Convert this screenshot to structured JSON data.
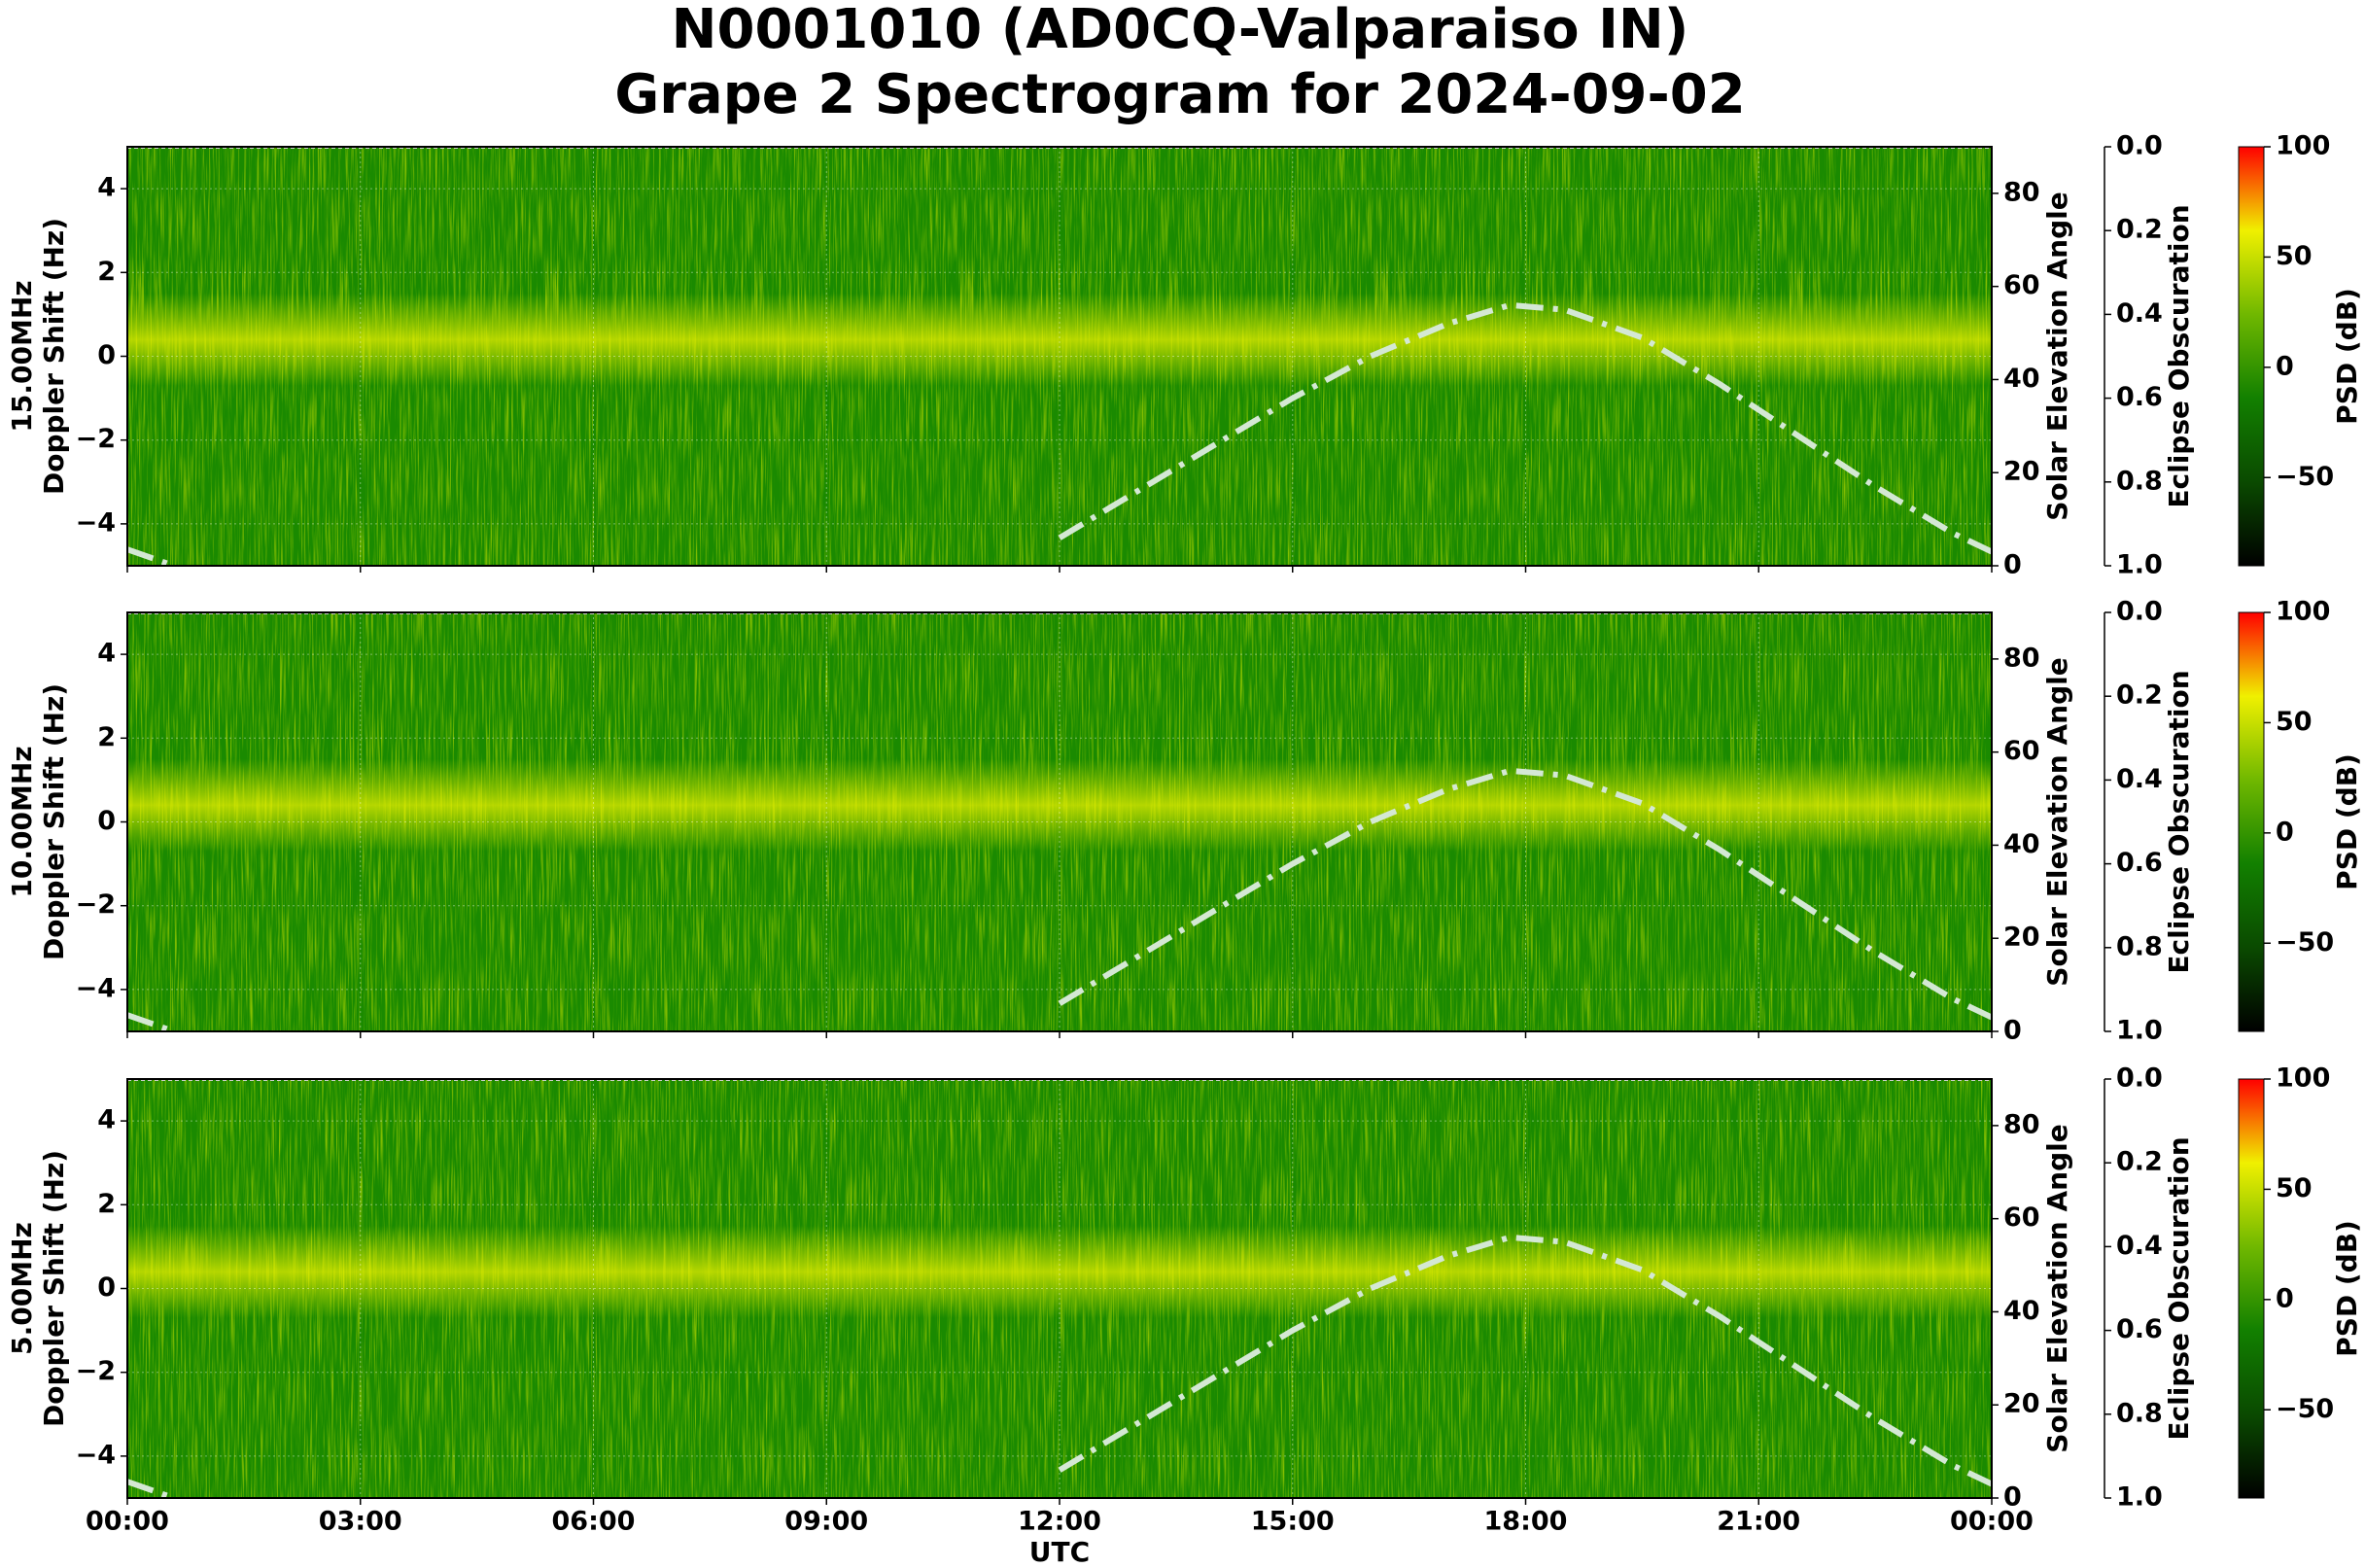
{
  "title": [
    "N0001010 (AD0CQ-Valparaiso IN)",
    "Grape 2 Spectrogram for 2024-09-02"
  ],
  "chart_data": [
    {
      "type": "spectrogram",
      "ylabel": [
        "15.00MHz",
        "Doppler Shift (Hz)"
      ],
      "xlim": [
        0,
        24
      ],
      "xticks": [
        {
          "value": 0,
          "label": "00:00"
        },
        {
          "value": 3,
          "label": "03:00"
        },
        {
          "value": 6,
          "label": "06:00"
        },
        {
          "value": 9,
          "label": "09:00"
        },
        {
          "value": 12,
          "label": "12:00"
        },
        {
          "value": 15,
          "label": "15:00"
        },
        {
          "value": 18,
          "label": "18:00"
        },
        {
          "value": 21,
          "label": "21:00"
        },
        {
          "value": 24,
          "label": "00:00"
        }
      ],
      "ylim": [
        -5,
        5
      ],
      "yticks": [
        {
          "value": -4,
          "label": "−4"
        },
        {
          "value": -2,
          "label": "−2"
        },
        0,
        2,
        4
      ],
      "y2label": "Solar Elevation Angle",
      "y2lim": [
        0,
        90
      ],
      "y2ticks": [
        0,
        20,
        40,
        60,
        80
      ],
      "y3label": "Eclipse Obscuration",
      "y3lim": [
        1,
        0
      ],
      "y3ticks": [
        {
          "value": 0,
          "label": "0.0"
        },
        {
          "value": 0.2,
          "label": "0.2"
        },
        {
          "value": 0.4,
          "label": "0.4"
        },
        {
          "value": 0.6,
          "label": "0.6"
        },
        {
          "value": 0.8,
          "label": "0.8"
        },
        {
          "value": 1,
          "label": "1.0"
        }
      ],
      "clabel": "PSD (dB)",
      "clim": [
        -90,
        100
      ],
      "cticks": [
        {
          "value": -50,
          "label": "−50"
        },
        0,
        50,
        100
      ],
      "colormap": [
        "#000000",
        "#0a4a00",
        "#128000",
        "#70b800",
        "#f0f000",
        "#ff0000"
      ],
      "grid": true,
      "solar": {
        "axis": "y2",
        "color": "#d4e8d4",
        "x": [
          0,
          0.6,
          11.3,
          12,
          13,
          14,
          15,
          16,
          17,
          17.8,
          18.5,
          19.5,
          20.5,
          21.5,
          22.5,
          23.5,
          24
        ],
        "values": [
          3.5,
          0,
          null,
          6,
          16,
          26,
          36,
          45,
          52,
          56,
          55,
          49,
          39,
          28,
          17,
          7,
          3
        ]
      }
    },
    {
      "type": "spectrogram",
      "ylabel": [
        "10.00MHz",
        "Doppler Shift (Hz)"
      ],
      "xlim": [
        0,
        24
      ],
      "xticks": [
        {
          "value": 0,
          "label": "00:00"
        },
        {
          "value": 3,
          "label": "03:00"
        },
        {
          "value": 6,
          "label": "06:00"
        },
        {
          "value": 9,
          "label": "09:00"
        },
        {
          "value": 12,
          "label": "12:00"
        },
        {
          "value": 15,
          "label": "15:00"
        },
        {
          "value": 18,
          "label": "18:00"
        },
        {
          "value": 21,
          "label": "21:00"
        },
        {
          "value": 24,
          "label": "00:00"
        }
      ],
      "ylim": [
        -5,
        5
      ],
      "yticks": [
        {
          "value": -4,
          "label": "−4"
        },
        {
          "value": -2,
          "label": "−2"
        },
        0,
        2,
        4
      ],
      "y2label": "Solar Elevation Angle",
      "y2lim": [
        0,
        90
      ],
      "y2ticks": [
        0,
        20,
        40,
        60,
        80
      ],
      "y3label": "Eclipse Obscuration",
      "y3lim": [
        1,
        0
      ],
      "y3ticks": [
        {
          "value": 0,
          "label": "0.0"
        },
        {
          "value": 0.2,
          "label": "0.2"
        },
        {
          "value": 0.4,
          "label": "0.4"
        },
        {
          "value": 0.6,
          "label": "0.6"
        },
        {
          "value": 0.8,
          "label": "0.8"
        },
        {
          "value": 1,
          "label": "1.0"
        }
      ],
      "clabel": "PSD (dB)",
      "clim": [
        -90,
        100
      ],
      "cticks": [
        {
          "value": -50,
          "label": "−50"
        },
        0,
        50,
        100
      ],
      "colormap": [
        "#000000",
        "#0a4a00",
        "#128000",
        "#70b800",
        "#f0f000",
        "#ff0000"
      ],
      "grid": true,
      "solar": {
        "axis": "y2",
        "color": "#d4e8d4",
        "x": [
          0,
          0.6,
          11.3,
          12,
          13,
          14,
          15,
          16,
          17,
          17.8,
          18.5,
          19.5,
          20.5,
          21.5,
          22.5,
          23.5,
          24
        ],
        "values": [
          3.5,
          0,
          null,
          6,
          16,
          26,
          36,
          45,
          52,
          56,
          55,
          49,
          39,
          28,
          17,
          7,
          3
        ]
      }
    },
    {
      "type": "spectrogram",
      "ylabel": [
        "5.00MHz",
        "Doppler Shift (Hz)"
      ],
      "xlabel": "UTC",
      "xlim": [
        0,
        24
      ],
      "xticks": [
        {
          "value": 0,
          "label": "00:00"
        },
        {
          "value": 3,
          "label": "03:00"
        },
        {
          "value": 6,
          "label": "06:00"
        },
        {
          "value": 9,
          "label": "09:00"
        },
        {
          "value": 12,
          "label": "12:00"
        },
        {
          "value": 15,
          "label": "15:00"
        },
        {
          "value": 18,
          "label": "18:00"
        },
        {
          "value": 21,
          "label": "21:00"
        },
        {
          "value": 24,
          "label": "00:00"
        }
      ],
      "ylim": [
        -5,
        5
      ],
      "yticks": [
        {
          "value": -4,
          "label": "−4"
        },
        {
          "value": -2,
          "label": "−2"
        },
        0,
        2,
        4
      ],
      "y2label": "Solar Elevation Angle",
      "y2lim": [
        0,
        90
      ],
      "y2ticks": [
        0,
        20,
        40,
        60,
        80
      ],
      "y3label": "Eclipse Obscuration",
      "y3lim": [
        1,
        0
      ],
      "y3ticks": [
        {
          "value": 0,
          "label": "0.0"
        },
        {
          "value": 0.2,
          "label": "0.2"
        },
        {
          "value": 0.4,
          "label": "0.4"
        },
        {
          "value": 0.6,
          "label": "0.6"
        },
        {
          "value": 0.8,
          "label": "0.8"
        },
        {
          "value": 1,
          "label": "1.0"
        }
      ],
      "clabel": "PSD (dB)",
      "clim": [
        -90,
        100
      ],
      "cticks": [
        {
          "value": -50,
          "label": "−50"
        },
        0,
        50,
        100
      ],
      "colormap": [
        "#000000",
        "#0a4a00",
        "#128000",
        "#70b800",
        "#f0f000",
        "#ff0000"
      ],
      "grid": true,
      "solar": {
        "axis": "y2",
        "color": "#d4e8d4",
        "x": [
          0,
          0.6,
          11.3,
          12,
          13,
          14,
          15,
          16,
          17,
          17.8,
          18.5,
          19.5,
          20.5,
          21.5,
          22.5,
          23.5,
          24
        ],
        "values": [
          3.5,
          0,
          null,
          6,
          16,
          26,
          36,
          45,
          52,
          56,
          55,
          49,
          39,
          28,
          17,
          7,
          3
        ]
      }
    }
  ]
}
